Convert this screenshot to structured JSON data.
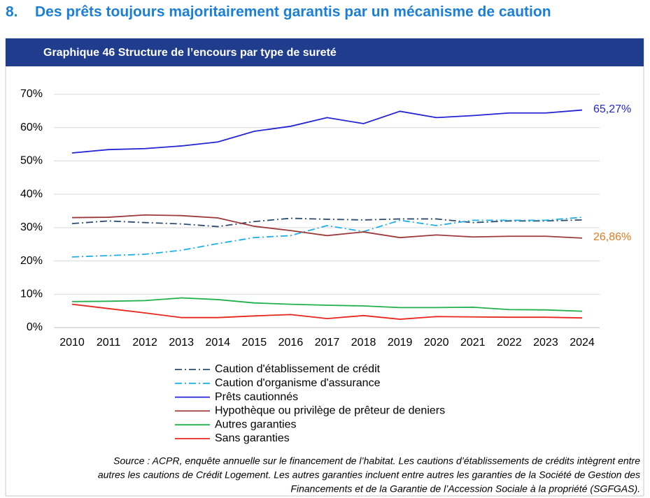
{
  "heading": {
    "number": "8.",
    "title": "Des prêts toujours majoritairement garantis par un mécanisme de caution"
  },
  "chart_data": {
    "type": "line",
    "title": "Graphique 46 Structure de l’encours par type de sureté",
    "categories": [
      "2010",
      "2011",
      "2012",
      "2013",
      "2014",
      "2015",
      "2016",
      "2017",
      "2018",
      "2019",
      "2020",
      "2021",
      "2022",
      "2023",
      "2024"
    ],
    "ylim": [
      0,
      70
    ],
    "yticks": [
      {
        "value": 0,
        "label": "0%"
      },
      {
        "value": 10,
        "label": "10%"
      },
      {
        "value": 20,
        "label": "20%"
      },
      {
        "value": 30,
        "label": "30%"
      },
      {
        "value": 40,
        "label": "40%"
      },
      {
        "value": 50,
        "label": "50%"
      },
      {
        "value": 60,
        "label": "60%"
      },
      {
        "value": 70,
        "label": "70%"
      }
    ],
    "grid": true,
    "series": [
      {
        "name": "Caution d'établissement de crédit",
        "color": "#2f4d6e",
        "dash": "dashdot",
        "values": [
          31.2,
          32,
          31.5,
          31.1,
          30.3,
          31.8,
          32.8,
          32.5,
          32.3,
          32.6,
          32.6,
          31.5,
          32,
          32,
          32.3
        ]
      },
      {
        "name": "Caution d'organisme d'assurance",
        "color": "#1eb0e6",
        "dash": "dashdot",
        "values": [
          21.2,
          21.6,
          22,
          23.2,
          25.2,
          27,
          27.6,
          30.6,
          28.8,
          32.2,
          30.6,
          32.2,
          32.2,
          32.2,
          33.1
        ]
      },
      {
        "name": "Prêts cautionnés",
        "color": "#2424d4",
        "dash": "solid",
        "values": [
          52.4,
          53.4,
          53.7,
          54.5,
          55.7,
          58.9,
          60.4,
          63,
          61.2,
          64.9,
          63,
          63.6,
          64.4,
          64.4,
          65.27
        ],
        "value_labels": [
          null,
          null,
          null,
          null,
          null,
          null,
          null,
          null,
          null,
          null,
          null,
          null,
          null,
          null,
          "65,27%"
        ],
        "value_label_color": "#2424d4"
      },
      {
        "name": "Hypothèque ou privilège de prêteur de deniers",
        "color": "#9c3a3a",
        "dash": "solid",
        "values": [
          33,
          33.1,
          33.8,
          33.6,
          32.9,
          30.4,
          29.1,
          27.6,
          28.7,
          27,
          27.8,
          27.2,
          27.4,
          27.4,
          26.86
        ],
        "value_labels": [
          null,
          null,
          null,
          null,
          null,
          null,
          null,
          null,
          null,
          null,
          null,
          null,
          null,
          null,
          "26,86%"
        ],
        "value_label_color": "#e07b22"
      },
      {
        "name": "Autres garanties",
        "color": "#21b04b",
        "dash": "solid",
        "values": [
          7.8,
          7.9,
          8.1,
          8.9,
          8.4,
          7.4,
          7,
          6.7,
          6.5,
          6,
          6,
          6.1,
          5.4,
          5.3,
          4.9
        ]
      },
      {
        "name": "Sans garanties",
        "color": "#e8261c",
        "dash": "solid",
        "values": [
          7,
          5.7,
          4.4,
          3,
          3,
          3.5,
          3.9,
          2.7,
          3.6,
          2.5,
          3.3,
          3.2,
          3.1,
          3.1,
          2.9
        ]
      }
    ],
    "source": [
      "Source : ACPR, enquête annuelle sur le financement de l’habitat. Les cautions d’établissements de crédits intègrent entre",
      "autres les cautions de Crédit Logement. Les autres garanties incluent entre autres les garanties de la Société de Gestion des",
      "Financements et de la Garantie de l’Accession Sociale à la propriété (SGFGAS)."
    ]
  }
}
